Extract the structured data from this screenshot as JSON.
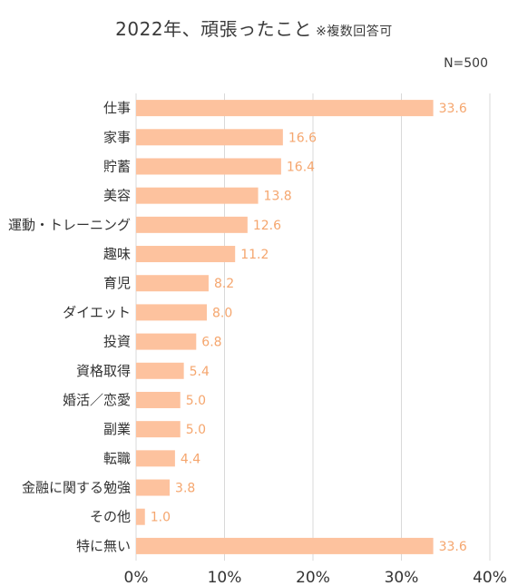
{
  "title": "2022年、頑張ったこと",
  "title_note": "※複数回答可",
  "sample_size": "N=500",
  "bar_color": "#FDC29E",
  "label_color": "#F5A66E",
  "grid_color": "#D9D9D9",
  "chart_data": {
    "type": "bar",
    "orientation": "horizontal",
    "title": "2022年、頑張ったこと",
    "categories": [
      "仕事",
      "家事",
      "貯蓄",
      "美容",
      "運動・トレーニング",
      "趣味",
      "育児",
      "ダイエット",
      "投資",
      "資格取得",
      "婚活／恋愛",
      "副業",
      "転職",
      "金融に関する勉強",
      "その他",
      "特に無い"
    ],
    "values": [
      33.6,
      16.6,
      16.4,
      13.8,
      12.6,
      11.2,
      8.2,
      8.0,
      6.8,
      5.4,
      5.0,
      5.0,
      4.4,
      3.8,
      1.0,
      33.6
    ],
    "value_labels": [
      "33.6",
      "16.6",
      "16.4",
      "13.8",
      "12.6",
      "11.2",
      "8.2",
      "8.0",
      "6.8",
      "5.4",
      "5.0",
      "5.0",
      "4.4",
      "3.8",
      "1.0",
      "33.6"
    ],
    "xlim": [
      0,
      40
    ],
    "x_ticks": [
      "0%",
      "10%",
      "20%",
      "30%",
      "40%"
    ],
    "grid": true,
    "unit": "%"
  }
}
